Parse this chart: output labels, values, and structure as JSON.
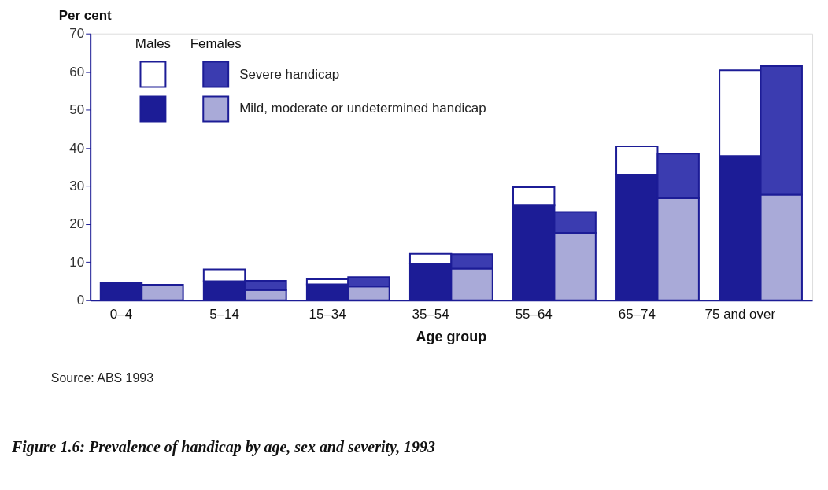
{
  "chart_data": {
    "type": "bar",
    "stacked": true,
    "title": "Figure 1.6: Prevalence of handicap by age, sex and severity, 1993",
    "ylabel": "Per cent",
    "xlabel": "Age group",
    "categories": [
      "0–4",
      null,
      "5–14",
      null,
      "15–34",
      null,
      "35–54",
      null,
      "55–64",
      null,
      "65–74",
      null,
      "75 and over",
      null
    ],
    "series": [
      {
        "name": "Mild, moderate or undetermined handicap",
        "colors": [
          "#1c1c96",
          "#a9aad8",
          "#1c1c96",
          "#a9aad8",
          "#1c1c96",
          "#a9aad8",
          "#1c1c96",
          "#a9aad8",
          "#1c1c96",
          "#a9aad8",
          "#1c1c96",
          "#a9aad8",
          "#1c1c96",
          "#a9aad8"
        ],
        "values": [
          4.7,
          4.1,
          5.0,
          2.7,
          4.2,
          3.6,
          9.6,
          8.3,
          24.9,
          17.7,
          33.0,
          26.8,
          37.9,
          27.7
        ]
      },
      {
        "name": "Severe handicap",
        "colors": [
          "#ffffff",
          "#3b3cb0",
          "#ffffff",
          "#3b3cb0",
          "#ffffff",
          "#3b3cb0",
          "#ffffff",
          "#3b3cb0",
          "#ffffff",
          "#3b3cb0",
          "#ffffff",
          "#3b3cb0",
          "#ffffff",
          "#3b3cb0"
        ],
        "values": [
          0,
          0,
          3.1,
          2.4,
          1.3,
          2.5,
          2.6,
          3.8,
          4.8,
          5.5,
          7.4,
          11.7,
          22.5,
          33.8
        ]
      }
    ],
    "ylim": [
      0,
      70
    ],
    "yticks": [
      0,
      10,
      20,
      30,
      40,
      50,
      60,
      70
    ],
    "grid": false,
    "legend": "top left",
    "annotations": [
      "Males",
      "Females",
      "Source: ABS 1993"
    ]
  }
}
